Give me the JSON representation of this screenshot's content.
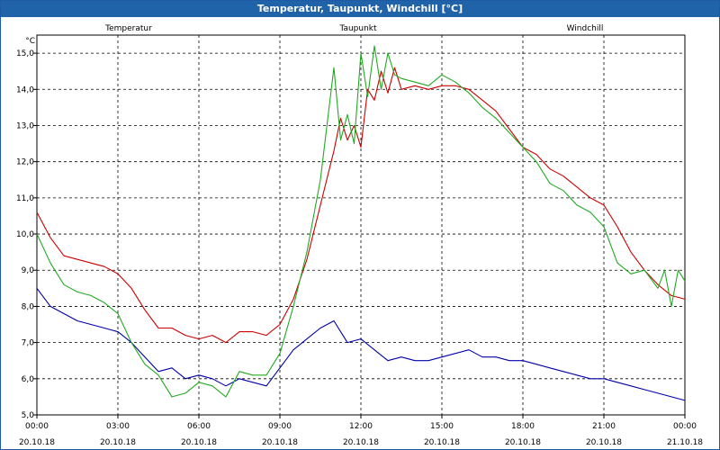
{
  "window_title": "Temperatur, Taupunkt, Windchill [°C]",
  "chart_data": {
    "type": "line",
    "title": "Temperatur, Taupunkt, Windchill [°C]",
    "ylabel": "°C",
    "ylim": [
      5.0,
      15.5
    ],
    "y_ticks": [
      "5,0",
      "6,0",
      "7,0",
      "8,0",
      "9,0",
      "10,0",
      "11,0",
      "12,0",
      "13,0",
      "14,0",
      "15,0"
    ],
    "y_tick_values": [
      5,
      6,
      7,
      8,
      9,
      10,
      11,
      12,
      13,
      14,
      15
    ],
    "xlim": [
      0,
      24
    ],
    "x_ticks": [
      {
        "time": "00:00",
        "date": "20.10.18",
        "h": 0
      },
      {
        "time": "03:00",
        "date": "20.10.18",
        "h": 3
      },
      {
        "time": "06:00",
        "date": "20.10.18",
        "h": 6
      },
      {
        "time": "09:00",
        "date": "20.10.18",
        "h": 9
      },
      {
        "time": "12:00",
        "date": "20.10.18",
        "h": 12
      },
      {
        "time": "15:00",
        "date": "20.10.18",
        "h": 15
      },
      {
        "time": "18:00",
        "date": "20.10.18",
        "h": 18
      },
      {
        "time": "21:00",
        "date": "20.10.18",
        "h": 21
      },
      {
        "time": "00:00",
        "date": "21.10.18",
        "h": 24
      }
    ],
    "grid": true,
    "legend_position": "top",
    "series": [
      {
        "name": "Temperatur",
        "color": "#cc0000",
        "x": [
          0,
          0.5,
          1,
          1.5,
          2,
          2.5,
          3,
          3.5,
          4,
          4.5,
          5,
          5.5,
          6,
          6.5,
          7,
          7.5,
          8,
          8.5,
          9,
          9.5,
          10,
          10.5,
          11,
          11.25,
          11.5,
          11.75,
          12,
          12.25,
          12.5,
          12.75,
          13,
          13.25,
          13.5,
          14,
          14.5,
          15,
          15.5,
          16,
          16.5,
          17,
          17.5,
          18,
          18.5,
          19,
          19.5,
          20,
          20.5,
          21,
          21.5,
          22,
          22.5,
          23,
          23.5,
          24
        ],
        "values": [
          10.6,
          9.9,
          9.4,
          9.3,
          9.2,
          9.1,
          8.9,
          8.5,
          7.9,
          7.4,
          7.4,
          7.2,
          7.1,
          7.2,
          7.0,
          7.3,
          7.3,
          7.2,
          7.5,
          8.2,
          9.3,
          10.8,
          12.3,
          13.2,
          12.6,
          13.0,
          12.4,
          14.0,
          13.7,
          14.5,
          13.9,
          14.6,
          14.0,
          14.1,
          14.0,
          14.1,
          14.1,
          14.0,
          13.7,
          13.4,
          12.9,
          12.4,
          12.2,
          11.8,
          11.6,
          11.3,
          11.0,
          10.8,
          10.2,
          9.5,
          9.0,
          8.6,
          8.3,
          8.2
        ]
      },
      {
        "name": "Taupunkt",
        "color": "#0000aa",
        "x": [
          0,
          0.5,
          1,
          1.5,
          2,
          2.5,
          3,
          3.5,
          4,
          4.5,
          5,
          5.5,
          6,
          6.5,
          7,
          7.5,
          8,
          8.5,
          9,
          9.5,
          10,
          10.5,
          11,
          11.5,
          12,
          12.5,
          13,
          13.5,
          14,
          14.5,
          15,
          15.5,
          16,
          16.5,
          17,
          17.5,
          18,
          18.5,
          19,
          19.5,
          20,
          20.5,
          21,
          21.5,
          22,
          22.5,
          23,
          23.5,
          24
        ],
        "values": [
          8.5,
          8.0,
          7.8,
          7.6,
          7.5,
          7.4,
          7.3,
          7.0,
          6.6,
          6.2,
          6.3,
          6.0,
          6.1,
          6.0,
          5.8,
          6.0,
          5.9,
          5.8,
          6.3,
          6.8,
          7.1,
          7.4,
          7.6,
          7.0,
          7.1,
          6.8,
          6.5,
          6.6,
          6.5,
          6.5,
          6.6,
          6.7,
          6.8,
          6.6,
          6.6,
          6.5,
          6.5,
          6.4,
          6.3,
          6.2,
          6.1,
          6.0,
          6.0,
          5.9,
          5.8,
          5.7,
          5.6,
          5.5,
          5.4
        ]
      },
      {
        "name": "Windchill",
        "color": "#22aa22",
        "x": [
          0,
          0.5,
          1,
          1.5,
          2,
          2.5,
          3,
          3.5,
          4,
          4.5,
          5,
          5.5,
          6,
          6.5,
          7,
          7.5,
          8,
          8.5,
          9,
          9.5,
          10,
          10.5,
          11,
          11.25,
          11.5,
          11.75,
          12,
          12.25,
          12.5,
          12.75,
          13,
          13.25,
          13.5,
          14,
          14.5,
          15,
          15.5,
          16,
          16.5,
          17,
          17.5,
          18,
          18.5,
          19,
          19.5,
          20,
          20.5,
          21,
          21.5,
          22,
          22.5,
          23,
          23.25,
          23.5,
          23.75,
          24
        ],
        "values": [
          10.0,
          9.2,
          8.6,
          8.4,
          8.3,
          8.1,
          7.8,
          7.0,
          6.4,
          6.1,
          5.5,
          5.6,
          5.9,
          5.8,
          5.5,
          6.2,
          6.1,
          6.1,
          6.7,
          8.0,
          9.5,
          11.5,
          14.6,
          12.6,
          13.3,
          12.5,
          15.0,
          13.8,
          15.2,
          14.0,
          15.0,
          14.4,
          14.3,
          14.2,
          14.1,
          14.4,
          14.2,
          13.9,
          13.5,
          13.2,
          12.8,
          12.4,
          12.0,
          11.4,
          11.2,
          10.8,
          10.6,
          10.2,
          9.2,
          8.9,
          9.0,
          8.5,
          9.0,
          8.0,
          9.0,
          8.7
        ]
      }
    ]
  }
}
